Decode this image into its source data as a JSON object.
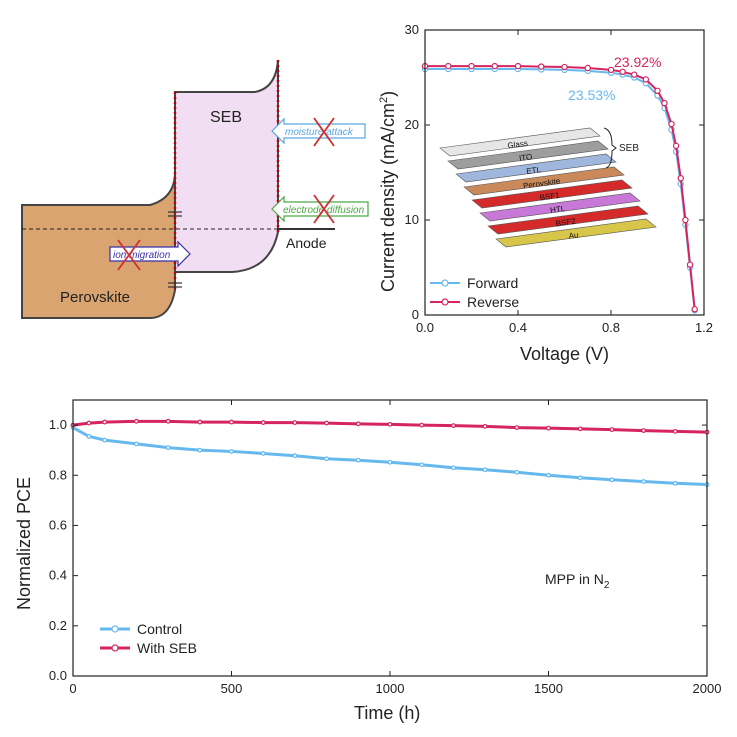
{
  "schematic": {
    "seb_label": "SEB",
    "anode_label": "Anode",
    "perovskite_label": "Perovskite",
    "moisture_label": "moisture attack",
    "electrode_label": "electrode diffusion",
    "ion_label": "ion migration",
    "colors": {
      "perovskite": "#d9a470",
      "seb": "#f1def2",
      "dotted": "#c00000",
      "moisture": "#5aa6e0",
      "electrode": "#4aa843",
      "ion": "#3a2fa8",
      "cross": "#d03030"
    }
  },
  "device_stack": {
    "layers": [
      "Glass",
      "ITO",
      "ETL",
      "Perovskite",
      "BSF1",
      "HTL",
      "BSF2",
      "Au"
    ],
    "bracket_label": "SEB",
    "colors": [
      "#e6e6e6",
      "#9e9e9e",
      "#9fb6dd",
      "#c9895a",
      "#d42a2a",
      "#c879d8",
      "#d42a2a",
      "#d8c64a"
    ]
  },
  "chart_data": [
    {
      "type": "line",
      "title": "",
      "xlabel": "Voltage (V)",
      "ylabel": "Current density (mA/cm²)",
      "ylabel_main": "Current density (mA/cm",
      "ylabel_sup": "2",
      "ylabel_tail": ")",
      "xlim": [
        0,
        1.2
      ],
      "ylim": [
        0,
        30
      ],
      "xticks": [
        0.0,
        0.4,
        0.8,
        1.2
      ],
      "xtick_labels": [
        "0.0",
        "0.4",
        "0.8",
        "1.2"
      ],
      "yticks": [
        0,
        10,
        20,
        30
      ],
      "ytick_labels": [
        "0",
        "10",
        "20",
        "30"
      ],
      "series": [
        {
          "name": "Forward",
          "color": "#66b9ee",
          "x": [
            0,
            0.1,
            0.2,
            0.3,
            0.4,
            0.5,
            0.6,
            0.7,
            0.8,
            0.85,
            0.9,
            0.95,
            1.0,
            1.03,
            1.06,
            1.08,
            1.1,
            1.12,
            1.14,
            1.16
          ],
          "y": [
            25.9,
            25.9,
            25.9,
            25.9,
            25.9,
            25.85,
            25.8,
            25.7,
            25.5,
            25.3,
            25.0,
            24.4,
            23.1,
            21.8,
            19.5,
            17.2,
            13.8,
            9.5,
            5.0,
            0.5
          ]
        },
        {
          "name": "Reverse",
          "color": "#d6245e",
          "x": [
            0,
            0.1,
            0.2,
            0.3,
            0.4,
            0.5,
            0.6,
            0.7,
            0.8,
            0.85,
            0.9,
            0.95,
            1.0,
            1.03,
            1.06,
            1.08,
            1.1,
            1.12,
            1.14,
            1.16
          ],
          "y": [
            26.2,
            26.2,
            26.2,
            26.2,
            26.2,
            26.15,
            26.1,
            26.0,
            25.8,
            25.6,
            25.3,
            24.8,
            23.6,
            22.3,
            20.1,
            17.8,
            14.4,
            10.0,
            5.3,
            0.6
          ]
        }
      ],
      "annotations": [
        {
          "text": "23.92%",
          "color": "#d6245e"
        },
        {
          "text": "23.53%",
          "color": "#66b9ee"
        }
      ]
    },
    {
      "type": "line",
      "title": "",
      "xlabel": "Time (h)",
      "ylabel": "Normalized PCE",
      "xlim": [
        0,
        2000
      ],
      "ylim": [
        0.0,
        1.1
      ],
      "xticks": [
        0,
        500,
        1000,
        1500,
        2000
      ],
      "xtick_labels": [
        "0",
        "500",
        "1000",
        "1500",
        "2000"
      ],
      "yticks": [
        0.0,
        0.2,
        0.4,
        0.6,
        0.8,
        1.0
      ],
      "ytick_labels": [
        "0.0",
        "0.2",
        "0.4",
        "0.6",
        "0.8",
        "1.0"
      ],
      "series": [
        {
          "name": "Control",
          "color": "#66b9ee",
          "x": [
            0,
            50,
            100,
            200,
            300,
            400,
            500,
            600,
            700,
            800,
            900,
            1000,
            1100,
            1200,
            1300,
            1400,
            1500,
            1600,
            1700,
            1800,
            1900,
            2000
          ],
          "y": [
            0.99,
            0.955,
            0.94,
            0.925,
            0.91,
            0.9,
            0.895,
            0.887,
            0.878,
            0.866,
            0.86,
            0.852,
            0.842,
            0.83,
            0.822,
            0.812,
            0.8,
            0.79,
            0.782,
            0.775,
            0.768,
            0.763
          ]
        },
        {
          "name": "With SEB",
          "color": "#d6245e",
          "x": [
            0,
            50,
            100,
            200,
            300,
            400,
            500,
            600,
            700,
            800,
            900,
            1000,
            1100,
            1200,
            1300,
            1400,
            1500,
            1600,
            1700,
            1800,
            1900,
            2000
          ],
          "y": [
            1.0,
            1.008,
            1.012,
            1.015,
            1.015,
            1.012,
            1.012,
            1.01,
            1.01,
            1.008,
            1.005,
            1.003,
            1.0,
            0.998,
            0.995,
            0.99,
            0.988,
            0.985,
            0.982,
            0.978,
            0.975,
            0.972
          ]
        }
      ],
      "annotations": [
        {
          "text_main": "MPP in N",
          "text_sub": "2"
        }
      ]
    }
  ]
}
